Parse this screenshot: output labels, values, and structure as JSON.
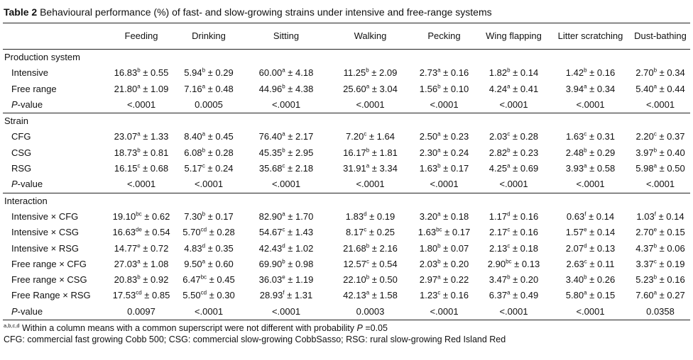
{
  "caption": {
    "label": "Table 2",
    "text": " Behavioural performance (%) of fast- and slow-growing strains under intensive and free-range systems"
  },
  "columns": [
    "",
    "Feeding",
    "Drinking",
    "Sitting",
    "Walking",
    "Pecking",
    "Wing flapping",
    "Litter scratching",
    "Dust-bathing"
  ],
  "sections": [
    {
      "title": "Production system",
      "rows": [
        {
          "label": "Intensive",
          "cells": [
            [
              "16.83",
              "b",
              "0.55"
            ],
            [
              "5.94",
              "b",
              "0.29"
            ],
            [
              "60.00",
              "a",
              "4.18"
            ],
            [
              "11.25",
              "b",
              "2.09"
            ],
            [
              "2.73",
              "a",
              "0.16"
            ],
            [
              "1.82",
              "b",
              "0.14"
            ],
            [
              "1.42",
              "b",
              "0.16"
            ],
            [
              "2.70",
              "b",
              "0.34"
            ]
          ]
        },
        {
          "label": "Free range",
          "cells": [
            [
              "21.80",
              "a",
              "1.09"
            ],
            [
              "7.16",
              "a",
              "0.48"
            ],
            [
              "44.96",
              "b",
              "4.38"
            ],
            [
              "25.60",
              "a",
              "3.04"
            ],
            [
              "1.56",
              "b",
              "0.10"
            ],
            [
              "4.24",
              "a",
              "0.41"
            ],
            [
              "3.94",
              "a",
              "0.34"
            ],
            [
              "5.40",
              "a",
              "0.44"
            ]
          ]
        }
      ],
      "pvalue": [
        "<.0001",
        "0.0005",
        "<.0001",
        "<.0001",
        "<.0001",
        "<.0001",
        "<.0001",
        "<.0001"
      ]
    },
    {
      "title": "Strain",
      "rows": [
        {
          "label": "CFG",
          "cells": [
            [
              "23.07",
              "a",
              "1.33"
            ],
            [
              "8.40",
              "a",
              "0.45"
            ],
            [
              "76.40",
              "a",
              "2.17"
            ],
            [
              "7.20",
              "c",
              "1.64"
            ],
            [
              "2.50",
              "a",
              "0.23"
            ],
            [
              "2.03",
              "c",
              "0.28"
            ],
            [
              "1.63",
              "c",
              "0.31"
            ],
            [
              "2.20",
              "c",
              "0.37"
            ]
          ]
        },
        {
          "label": "CSG",
          "cells": [
            [
              "18.73",
              "b",
              "0.81"
            ],
            [
              "6.08",
              "b",
              "0.28"
            ],
            [
              "45.35",
              "b",
              "2.95"
            ],
            [
              "16.17",
              "b",
              "1.81"
            ],
            [
              "2.30",
              "a",
              "0.24"
            ],
            [
              "2.82",
              "b",
              "0.23"
            ],
            [
              "2.48",
              "b",
              "0.29"
            ],
            [
              "3.97",
              "b",
              "0.40"
            ]
          ]
        },
        {
          "label": "RSG",
          "cells": [
            [
              "16.15",
              "c",
              "0.68"
            ],
            [
              "5.17",
              "c",
              "0.24"
            ],
            [
              "35.68",
              "c",
              "2.18"
            ],
            [
              "31.91",
              "a",
              "3.34"
            ],
            [
              "1.63",
              "b",
              "0.17"
            ],
            [
              "4.25",
              "a",
              "0.69"
            ],
            [
              "3.93",
              "a",
              "0.58"
            ],
            [
              "5.98",
              "a",
              "0.50"
            ]
          ]
        }
      ],
      "pvalue": [
        "<.0001",
        "<.0001",
        "<.0001",
        "<.0001",
        "<.0001",
        "<.0001",
        "<.0001",
        "<.0001"
      ]
    },
    {
      "title": "Interaction",
      "rows": [
        {
          "label": "Intensive × CFG",
          "cells": [
            [
              "19.10",
              "bc",
              "0.62"
            ],
            [
              "7.30",
              "b",
              "0.17"
            ],
            [
              "82.90",
              "a",
              "1.70"
            ],
            [
              "1.83",
              "d",
              "0.19"
            ],
            [
              "3.20",
              "a",
              "0.18"
            ],
            [
              "1.17",
              "d",
              "0.16"
            ],
            [
              "0.63",
              "f",
              "0.14"
            ],
            [
              "1.03",
              "f",
              "0.14"
            ]
          ]
        },
        {
          "label": "Intensive × CSG",
          "cells": [
            [
              "16.63",
              "de",
              "0.54"
            ],
            [
              "5.70",
              "cd",
              "0.28"
            ],
            [
              "54.67",
              "c",
              "1.43"
            ],
            [
              "8.17",
              "c",
              "0.25"
            ],
            [
              "1.63",
              "bc",
              "0.17"
            ],
            [
              "2.17",
              "c",
              "0.16"
            ],
            [
              "1.57",
              "e",
              "0.14"
            ],
            [
              "2.70",
              "e",
              "0.15"
            ]
          ]
        },
        {
          "label": "Intensive × RSG",
          "cells": [
            [
              "14.77",
              "e",
              "0.72"
            ],
            [
              "4.83",
              "d",
              "0.35"
            ],
            [
              "42.43",
              "d",
              "1.02"
            ],
            [
              "21.68",
              "b",
              "2.16"
            ],
            [
              "1.80",
              "b",
              "0.07"
            ],
            [
              "2.13",
              "c",
              "0.18"
            ],
            [
              "2.07",
              "d",
              "0.13"
            ],
            [
              "4.37",
              "b",
              "0.06"
            ]
          ]
        },
        {
          "label": "Free range × CFG",
          "cells": [
            [
              "27.03",
              "a",
              "1.08"
            ],
            [
              "9.50",
              "a",
              "0.60"
            ],
            [
              "69.90",
              "b",
              "0.98"
            ],
            [
              "12.57",
              "c",
              "0.54"
            ],
            [
              "2.03",
              "b",
              "0.20"
            ],
            [
              "2.90",
              "bc",
              "0.13"
            ],
            [
              "2.63",
              "c",
              "0.11"
            ],
            [
              "3.37",
              "c",
              "0.19"
            ]
          ]
        },
        {
          "label": "Free range × CSG",
          "cells": [
            [
              "20.83",
              "b",
              "0.92"
            ],
            [
              "6.47",
              "bc",
              "0.45"
            ],
            [
              "36.03",
              "e",
              "1.19"
            ],
            [
              "22.10",
              "b",
              "0.50"
            ],
            [
              "2.97",
              "a",
              "0.22"
            ],
            [
              "3.47",
              "b",
              "0.20"
            ],
            [
              "3.40",
              "b",
              "0.26"
            ],
            [
              "5.23",
              "b",
              "0.16"
            ]
          ]
        },
        {
          "label": "Free Range × RSG",
          "cells": [
            [
              "17.53",
              "cd",
              "0.85"
            ],
            [
              "5.50",
              "cd",
              "0.30"
            ],
            [
              "28.93",
              "f",
              "1.31"
            ],
            [
              "42.13",
              "a",
              "1.58"
            ],
            [
              "1.23",
              "c",
              "0.16"
            ],
            [
              "6.37",
              "a",
              "0.49"
            ],
            [
              "5.80",
              "a",
              "0.15"
            ],
            [
              "7.60",
              "a",
              "0.27"
            ]
          ]
        }
      ],
      "pvalue": [
        "0.0097",
        "<.0001",
        "<.0001",
        "0.0003",
        "<.0001",
        "<.0001",
        "<.0001",
        "0.0358"
      ]
    }
  ],
  "pvalue_label": {
    "italic": "P",
    "rest": "-value"
  },
  "footnotes": {
    "sup": "a,b,c,d",
    "line1_pre": " Within a column means with a common superscript were not different with probability ",
    "line1_italic": "P",
    "line1_post": " =0.05",
    "line2": "CFG: commercial fast growing Cobb 500; CSG: commercial slow-growing CobbSasso; RSG: rural slow-growing Red Island Red"
  }
}
